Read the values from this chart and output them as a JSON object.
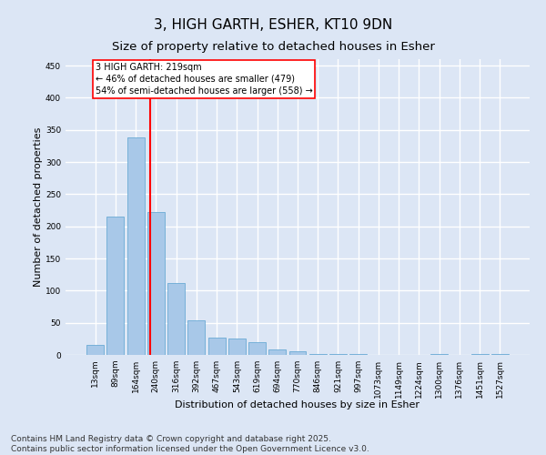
{
  "title_line1": "3, HIGH GARTH, ESHER, KT10 9DN",
  "title_line2": "Size of property relative to detached houses in Esher",
  "xlabel": "Distribution of detached houses by size in Esher",
  "ylabel": "Number of detached properties",
  "categories": [
    "13sqm",
    "89sqm",
    "164sqm",
    "240sqm",
    "316sqm",
    "392sqm",
    "467sqm",
    "543sqm",
    "619sqm",
    "694sqm",
    "770sqm",
    "846sqm",
    "921sqm",
    "997sqm",
    "1073sqm",
    "1149sqm",
    "1224sqm",
    "1300sqm",
    "1376sqm",
    "1451sqm",
    "1527sqm"
  ],
  "values": [
    15,
    215,
    338,
    222,
    112,
    54,
    27,
    25,
    20,
    8,
    5,
    2,
    1,
    1,
    0,
    0,
    0,
    2,
    0,
    1,
    2
  ],
  "bar_color": "#a8c8e8",
  "bar_edgecolor": "#6aaad4",
  "vline_color": "red",
  "annotation_text": "3 HIGH GARTH: 219sqm\n← 46% of detached houses are smaller (479)\n54% of semi-detached houses are larger (558) →",
  "annotation_box_color": "white",
  "annotation_box_edgecolor": "red",
  "ylim": [
    0,
    460
  ],
  "yticks": [
    0,
    50,
    100,
    150,
    200,
    250,
    300,
    350,
    400,
    450
  ],
  "background_color": "#dce6f5",
  "grid_color": "white",
  "footer": "Contains HM Land Registry data © Crown copyright and database right 2025.\nContains public sector information licensed under the Open Government Licence v3.0.",
  "title_fontsize": 11,
  "subtitle_fontsize": 9.5,
  "axis_fontsize": 8,
  "tick_fontsize": 6.5,
  "footer_fontsize": 6.5,
  "vline_position": 2.72
}
